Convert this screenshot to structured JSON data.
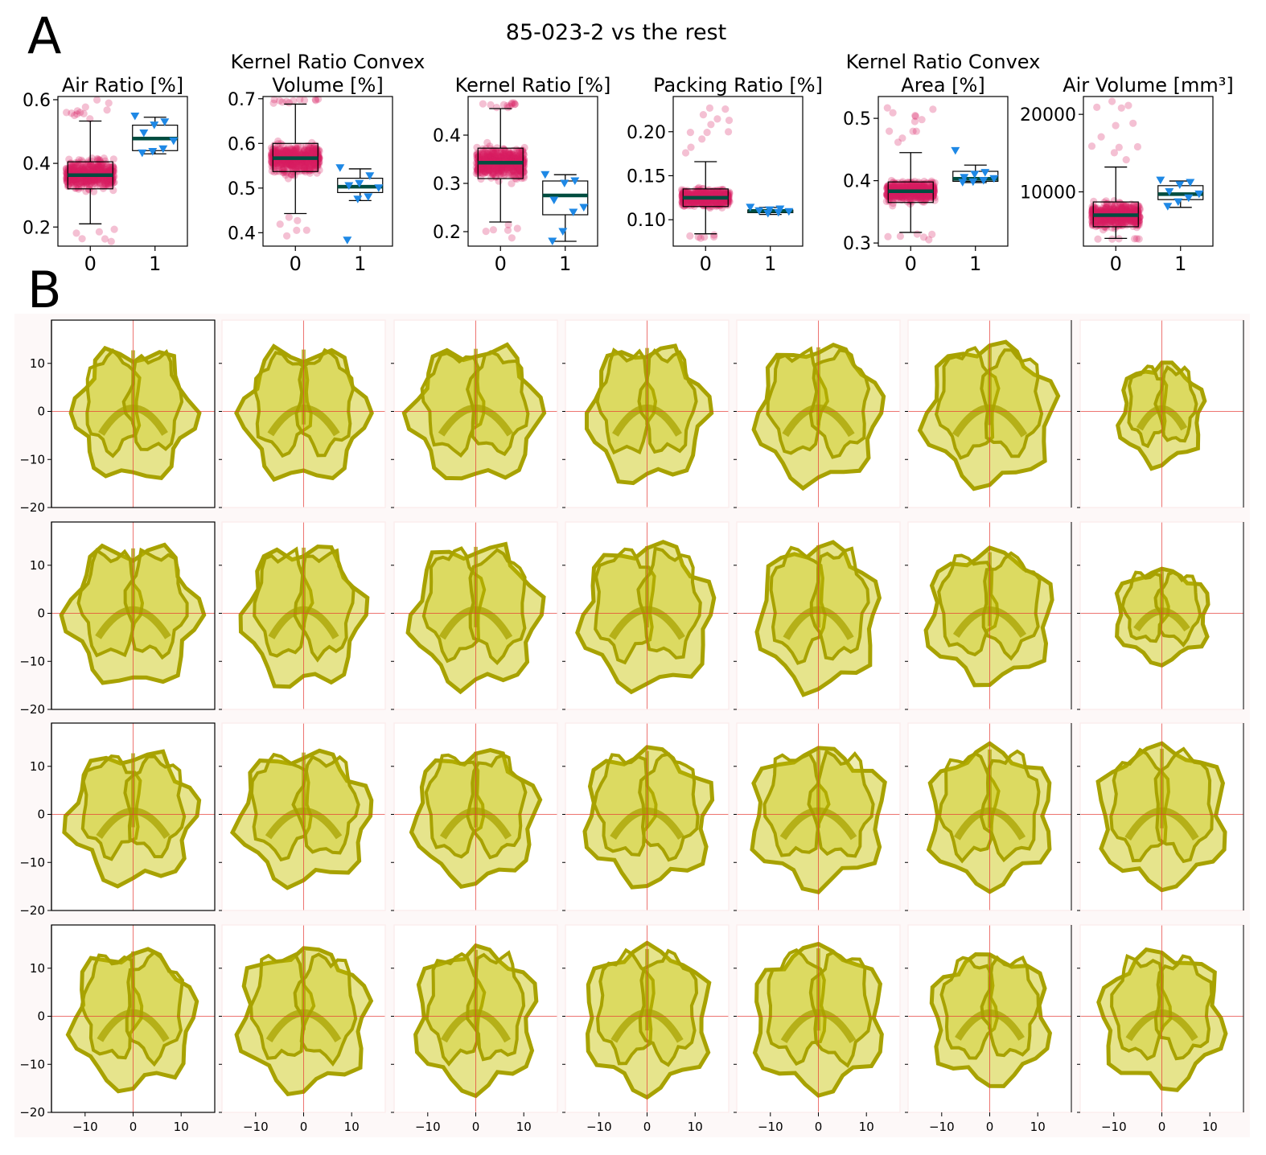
{
  "panel_a_label": "A",
  "panel_b_label": "B",
  "suptitle": "85-023-2 vs the rest",
  "colors": {
    "group0_points": "#d81b60",
    "group1_points": "#1e88e5",
    "median_line": "#004d40",
    "walnut_fill": "#c8c400",
    "walnut_edge": "#a8a200",
    "crosshair": "#e53935",
    "panel_b_background": "#fdf8f8"
  },
  "chart_data": [
    {
      "type": "box",
      "title": "Air Ratio [%]",
      "title_lines": [
        "Air Ratio [%]"
      ],
      "categories": [
        "0",
        "1"
      ],
      "yticks": [
        "0.2",
        "0.4",
        "0.6"
      ],
      "ytick_values": [
        0.2,
        0.4,
        0.6
      ],
      "ylim": [
        0.14,
        0.61
      ],
      "group0": {
        "whisker_low": 0.21,
        "q1": 0.32,
        "median": 0.363,
        "q3": 0.405,
        "whisker_high": 0.533,
        "point_min": 0.15,
        "point_max": 0.6
      },
      "group1": {
        "whisker_low": 0.43,
        "q1": 0.44,
        "median": 0.478,
        "q3": 0.52,
        "whisker_high": 0.545,
        "points": [
          0.548,
          0.53,
          0.52,
          0.495,
          0.47,
          0.445,
          0.437,
          0.432
        ]
      }
    },
    {
      "type": "box",
      "title": "Kernel Ratio Convex Volume [%]",
      "title_lines": [
        "Kernel Ratio Convex",
        "Volume [%]"
      ],
      "categories": [
        "0",
        "1"
      ],
      "yticks": [
        "0.4",
        "0.5",
        "0.6",
        "0.7"
      ],
      "ytick_values": [
        0.4,
        0.5,
        0.6,
        0.7
      ],
      "ylim": [
        0.37,
        0.705
      ],
      "group0": {
        "whisker_low": 0.443,
        "q1": 0.537,
        "median": 0.567,
        "q3": 0.6,
        "whisker_high": 0.688,
        "point_min": 0.385,
        "point_max": 0.7
      },
      "group1": {
        "whisker_low": 0.472,
        "q1": 0.49,
        "median": 0.503,
        "q3": 0.522,
        "whisker_high": 0.543,
        "points": [
          0.545,
          0.527,
          0.51,
          0.505,
          0.5,
          0.48,
          0.475,
          0.383
        ]
      }
    },
    {
      "type": "box",
      "title": "Kernel Ratio [%]",
      "title_lines": [
        "Kernel Ratio [%]"
      ],
      "categories": [
        "0",
        "1"
      ],
      "yticks": [
        "0.2",
        "0.3",
        "0.4"
      ],
      "ytick_values": [
        0.2,
        0.3,
        0.4
      ],
      "ylim": [
        0.17,
        0.48
      ],
      "group0": {
        "whisker_low": 0.22,
        "q1": 0.31,
        "median": 0.343,
        "q3": 0.373,
        "whisker_high": 0.455,
        "point_min": 0.18,
        "point_max": 0.47
      },
      "group1": {
        "whisker_low": 0.18,
        "q1": 0.235,
        "median": 0.275,
        "q3": 0.305,
        "whisker_high": 0.318,
        "points": [
          0.318,
          0.305,
          0.3,
          0.265,
          0.25,
          0.24,
          0.2,
          0.18
        ]
      }
    },
    {
      "type": "box",
      "title": "Packing Ratio [%]",
      "title_lines": [
        "Packing Ratio [%]"
      ],
      "categories": [
        "0",
        "1"
      ],
      "yticks": [
        "0.10",
        "0.15",
        "0.20"
      ],
      "ytick_values": [
        0.1,
        0.15,
        0.2
      ],
      "ylim": [
        0.07,
        0.24
      ],
      "group0": {
        "whisker_low": 0.084,
        "q1": 0.115,
        "median": 0.125,
        "q3": 0.135,
        "whisker_high": 0.166,
        "point_min": 0.078,
        "point_max": 0.233
      },
      "group1": {
        "whisker_low": 0.106,
        "q1": 0.108,
        "median": 0.11,
        "q3": 0.111,
        "whisker_high": 0.114,
        "points": [
          0.114,
          0.112,
          0.111,
          0.11,
          0.109,
          0.108,
          0.107
        ]
      }
    },
    {
      "type": "box",
      "title": "Kernel Ratio Convex Area [%]",
      "title_lines": [
        "Kernel Ratio Convex",
        "Area [%]"
      ],
      "categories": [
        "0",
        "1"
      ],
      "yticks": [
        "0.3",
        "0.4",
        "0.5"
      ],
      "ytick_values": [
        0.3,
        0.4,
        0.5
      ],
      "ylim": [
        0.295,
        0.535
      ],
      "group0": {
        "whisker_low": 0.317,
        "q1": 0.365,
        "median": 0.383,
        "q3": 0.398,
        "whisker_high": 0.445,
        "point_min": 0.305,
        "point_max": 0.53
      },
      "group1": {
        "whisker_low": 0.397,
        "q1": 0.399,
        "median": 0.403,
        "q3": 0.415,
        "whisker_high": 0.425,
        "points": [
          0.448,
          0.413,
          0.41,
          0.405,
          0.403,
          0.4,
          0.398,
          0.397
        ]
      }
    },
    {
      "type": "box",
      "title": "Air Volume [mm³]",
      "title_lines": [
        "Air Volume [mm³]"
      ],
      "categories": [
        "0",
        "1"
      ],
      "yticks": [
        "10000",
        "20000"
      ],
      "ytick_values": [
        10000,
        20000
      ],
      "ylim": [
        3000,
        22300
      ],
      "group0": {
        "whisker_low": 4000,
        "q1": 5500,
        "median": 7000,
        "q3": 8700,
        "whisker_high": 13200,
        "point_min": 3900,
        "point_max": 21700
      },
      "group1": {
        "whisker_low": 8000,
        "q1": 9000,
        "median": 9700,
        "q3": 10800,
        "whisker_high": 11400,
        "points": [
          11500,
          11200,
          10900,
          10000,
          9700,
          9200,
          8700,
          8100
        ]
      }
    },
    {
      "type": "image_grid",
      "rows": 4,
      "cols": 7,
      "xticks": [
        "−10",
        "0",
        "10"
      ],
      "xtick_values": [
        -10,
        0,
        10
      ],
      "yticks": [
        "10",
        "0",
        "−10",
        "−20"
      ],
      "ytick_values": [
        10,
        0,
        -10,
        -20
      ],
      "xlim": [
        -17,
        17
      ],
      "ylim": [
        -20,
        19
      ]
    }
  ]
}
